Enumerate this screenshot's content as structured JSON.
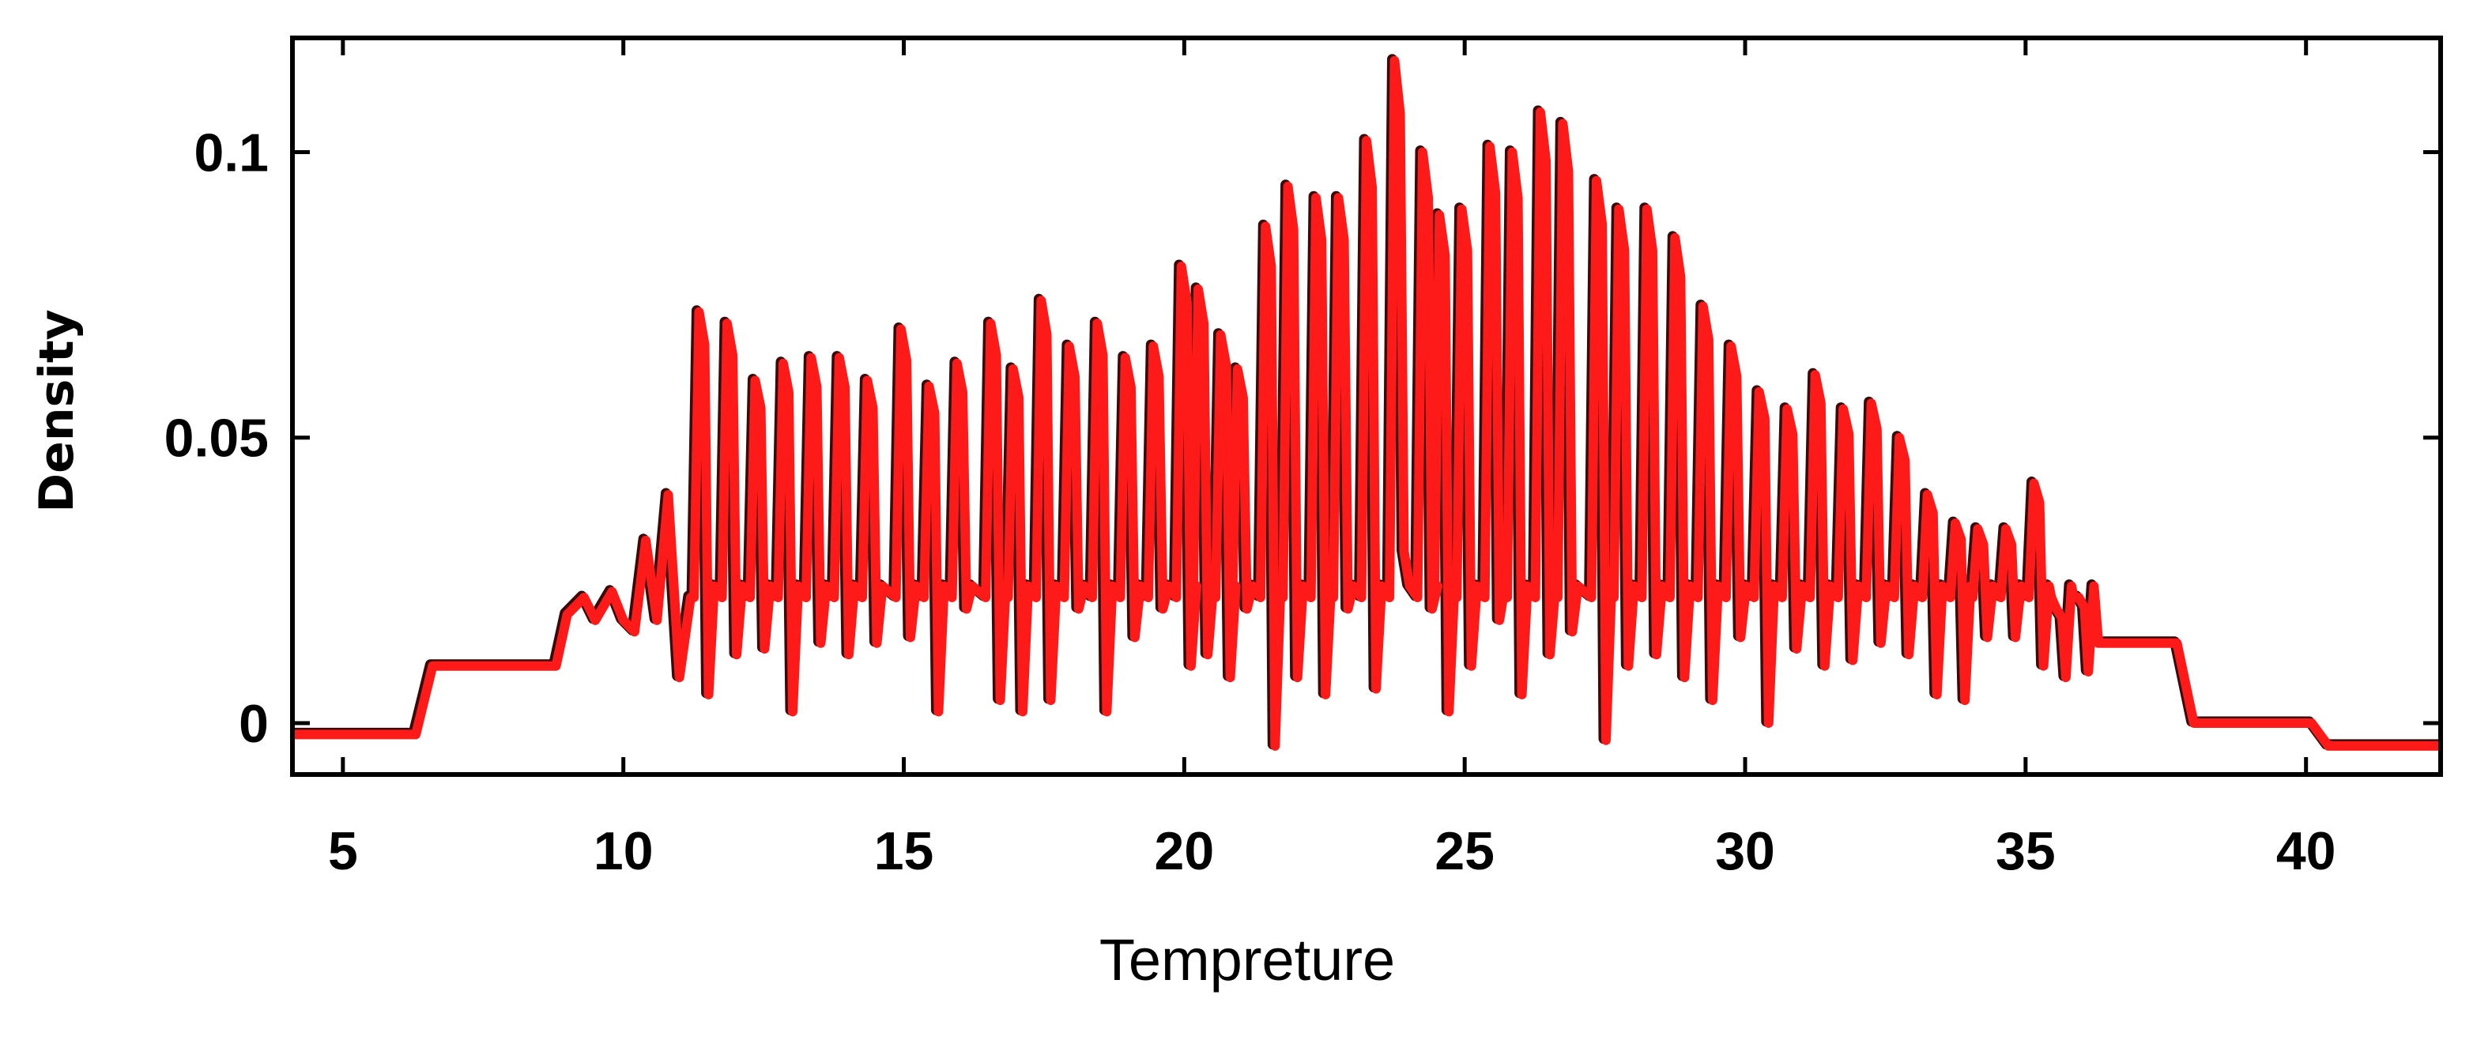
{
  "chart_data": {
    "type": "line",
    "title": "",
    "xlabel": "Tempreture",
    "ylabel": "Density",
    "xlim": [
      4.1,
      42.4
    ],
    "ylim": [
      -0.009,
      0.12
    ],
    "x_ticks": [
      5,
      10,
      15,
      20,
      25,
      30,
      35,
      40
    ],
    "x_tick_labels": [
      "5",
      "10",
      "15",
      "20",
      "25",
      "30",
      "35",
      "40"
    ],
    "y_ticks": [
      0,
      0.05,
      0.1
    ],
    "y_tick_labels": [
      "0",
      "0.05",
      "0.1"
    ],
    "grid": false,
    "legend": "none",
    "colors": {
      "line": "#ff1a1a",
      "shadow": "#3a0a0a",
      "axis": "#000000"
    },
    "series": [
      {
        "plateaus": [
          {
            "x_start": 4.1,
            "x_end": 6.3,
            "y": -0.002
          },
          {
            "x_start": 6.6,
            "x_end": 8.0,
            "y": 0.01
          },
          {
            "x_start": 8.1,
            "x_end": 8.8,
            "y": 0.01
          },
          {
            "x_start": 36.3,
            "x_end": 37.7,
            "y": 0.014
          },
          {
            "x_start": 38.0,
            "x_end": 40.1,
            "y": 0.0
          },
          {
            "x_start": 40.4,
            "x_end": 42.4,
            "y": -0.004
          }
        ],
        "transition": [
          [
            9.0,
            0.019
          ],
          [
            9.3,
            0.022
          ],
          [
            9.5,
            0.018
          ],
          [
            9.8,
            0.023
          ],
          [
            10.0,
            0.018
          ],
          [
            10.2,
            0.016
          ],
          [
            10.4,
            0.032
          ],
          [
            10.6,
            0.018
          ],
          [
            10.8,
            0.04
          ],
          [
            11.0,
            0.008
          ],
          [
            11.2,
            0.022
          ]
        ],
        "spikes": [
          [
            11.4,
            0.072,
            0.005
          ],
          [
            11.9,
            0.07,
            0.012
          ],
          [
            12.4,
            0.06,
            0.013
          ],
          [
            12.9,
            0.063,
            0.002
          ],
          [
            13.4,
            0.064,
            0.014
          ],
          [
            13.9,
            0.064,
            0.012
          ],
          [
            14.4,
            0.06,
            0.014
          ],
          [
            15.0,
            0.069,
            0.015
          ],
          [
            15.5,
            0.059,
            0.002
          ],
          [
            16.0,
            0.063,
            0.02
          ],
          [
            16.6,
            0.07,
            0.004
          ],
          [
            17.0,
            0.062,
            0.002
          ],
          [
            17.5,
            0.074,
            0.004
          ],
          [
            18.0,
            0.066,
            0.02
          ],
          [
            18.5,
            0.07,
            0.002
          ],
          [
            19.0,
            0.064,
            0.015
          ],
          [
            19.5,
            0.066,
            0.02
          ],
          [
            20.0,
            0.08,
            0.01
          ],
          [
            20.3,
            0.076,
            0.012
          ],
          [
            20.7,
            0.068,
            0.008
          ],
          [
            21.0,
            0.062,
            0.02
          ],
          [
            21.5,
            0.087,
            -0.004
          ],
          [
            21.9,
            0.094,
            0.008
          ],
          [
            22.4,
            0.092,
            0.005
          ],
          [
            22.8,
            0.092,
            0.02
          ],
          [
            23.3,
            0.102,
            0.006
          ],
          [
            23.8,
            0.116,
            0.03
          ],
          [
            24.3,
            0.1,
            0.02
          ],
          [
            24.6,
            0.089,
            0.002
          ],
          [
            25.0,
            0.09,
            0.01
          ],
          [
            25.5,
            0.101,
            0.018
          ],
          [
            25.9,
            0.1,
            0.005
          ],
          [
            26.4,
            0.107,
            0.012
          ],
          [
            26.8,
            0.105,
            0.016
          ],
          [
            27.4,
            0.095,
            -0.003
          ],
          [
            27.8,
            0.09,
            0.01
          ],
          [
            28.3,
            0.09,
            0.012
          ],
          [
            28.8,
            0.085,
            0.008
          ],
          [
            29.3,
            0.073,
            0.004
          ],
          [
            29.8,
            0.066,
            0.015
          ],
          [
            30.3,
            0.058,
            0.0
          ],
          [
            30.8,
            0.055,
            0.013
          ],
          [
            31.3,
            0.061,
            0.01
          ],
          [
            31.8,
            0.055,
            0.011
          ],
          [
            32.3,
            0.056,
            0.014
          ],
          [
            32.8,
            0.05,
            0.012
          ],
          [
            33.3,
            0.04,
            0.005
          ],
          [
            33.8,
            0.035,
            0.004
          ],
          [
            34.2,
            0.034,
            0.015
          ],
          [
            34.7,
            0.034,
            0.015
          ],
          [
            35.2,
            0.042,
            0.01
          ],
          [
            35.6,
            0.02,
            0.008
          ],
          [
            36.0,
            0.022,
            0.009
          ]
        ]
      }
    ]
  }
}
